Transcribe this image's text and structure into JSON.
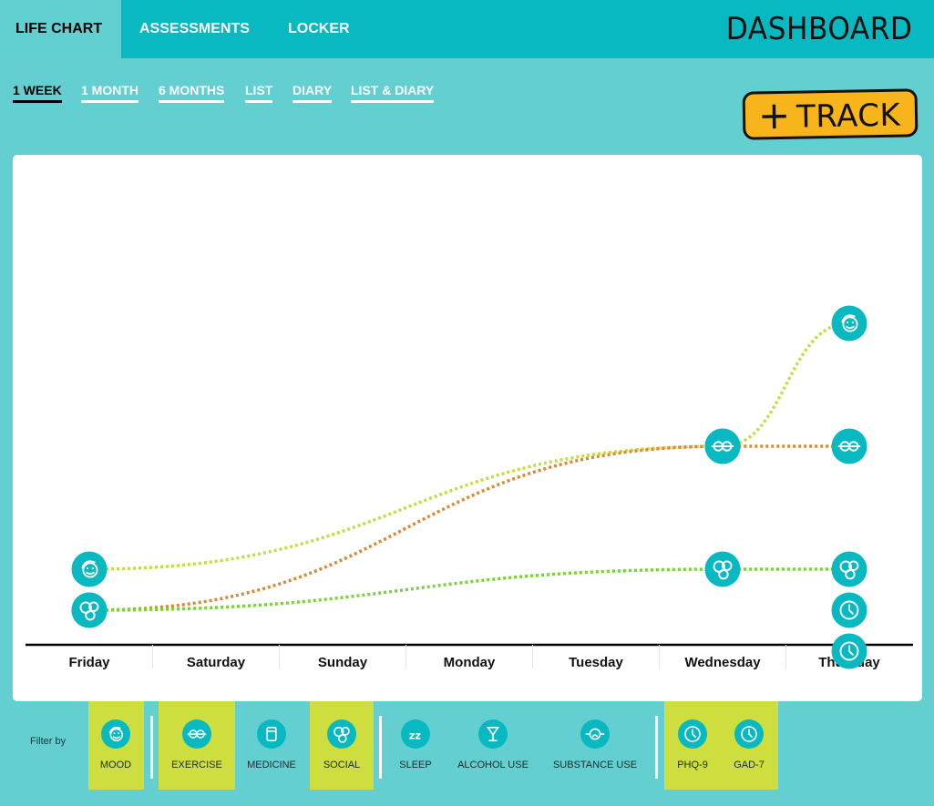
{
  "nav": {
    "tabs": [
      {
        "label": "LIFE CHART",
        "active": true
      },
      {
        "label": "ASSESSMENTS",
        "active": false
      },
      {
        "label": "LOCKER",
        "active": false
      }
    ],
    "brand": "DASHBOARD"
  },
  "ranges": [
    {
      "label": "1 WEEK",
      "active": true
    },
    {
      "label": "1 MONTH",
      "active": false
    },
    {
      "label": "6 MONTHS",
      "active": false
    },
    {
      "label": "LIST",
      "active": false
    },
    {
      "label": "DIARY",
      "active": false
    },
    {
      "label": "LIST & DIARY",
      "active": false
    }
  ],
  "track_button": {
    "plus": "+",
    "label": "TRACK"
  },
  "chart_data": {
    "type": "line",
    "categories": [
      "Friday",
      "Saturday",
      "Sunday",
      "Monday",
      "Tuesday",
      "Wednesday",
      "Thursday"
    ],
    "ylim": [
      0,
      10
    ],
    "grid": false,
    "series": [
      {
        "icon": "mood-icon",
        "color": "#c5de3f",
        "points": [
          {
            "x": "Friday",
            "y": 3
          },
          {
            "x": "Wednesday",
            "y": 6
          },
          {
            "x": "Thursday",
            "y": 9
          }
        ]
      },
      {
        "icon": "exercise-icon",
        "color": "#d98a3a",
        "points": [
          {
            "x": "Friday",
            "y": 2
          },
          {
            "x": "Wednesday",
            "y": 6
          },
          {
            "x": "Thursday",
            "y": 6
          }
        ]
      },
      {
        "icon": "social-icon",
        "color": "#79d339",
        "points": [
          {
            "x": "Friday",
            "y": 2
          },
          {
            "x": "Wednesday",
            "y": 3
          },
          {
            "x": "Thursday",
            "y": 3
          }
        ]
      },
      {
        "icon": "phq9-clock-icon",
        "color": "#08b9c1",
        "points": [
          {
            "x": "Thursday",
            "y": 2
          }
        ]
      },
      {
        "icon": "gad7-clock-icon",
        "color": "#08b9c1",
        "points": [
          {
            "x": "Thursday",
            "y": 1
          }
        ]
      }
    ]
  },
  "filter": {
    "label": "Filter by",
    "items": [
      {
        "label": "MOOD",
        "icon": "mood-icon",
        "selected": true
      },
      {
        "label": "EXERCISE",
        "icon": "exercise-icon",
        "selected": true
      },
      {
        "label": "MEDICINE",
        "icon": "medicine-icon",
        "selected": false
      },
      {
        "label": "SOCIAL",
        "icon": "social-icon",
        "selected": true
      },
      {
        "label": "SLEEP",
        "icon": "sleep-icon",
        "selected": false
      },
      {
        "label": "ALCOHOL USE",
        "icon": "alcohol-icon",
        "selected": false
      },
      {
        "label": "SUBSTANCE USE",
        "icon": "substance-icon",
        "selected": false
      },
      {
        "label": "PHQ-9",
        "icon": "phq9-clock-icon",
        "selected": true
      },
      {
        "label": "GAD-7",
        "icon": "gad7-clock-icon",
        "selected": true
      }
    ]
  },
  "colors": {
    "accent": "#08b9c1",
    "background": "#63cfd0",
    "highlight": "#cede3e",
    "track_button": "#f7b41b"
  }
}
